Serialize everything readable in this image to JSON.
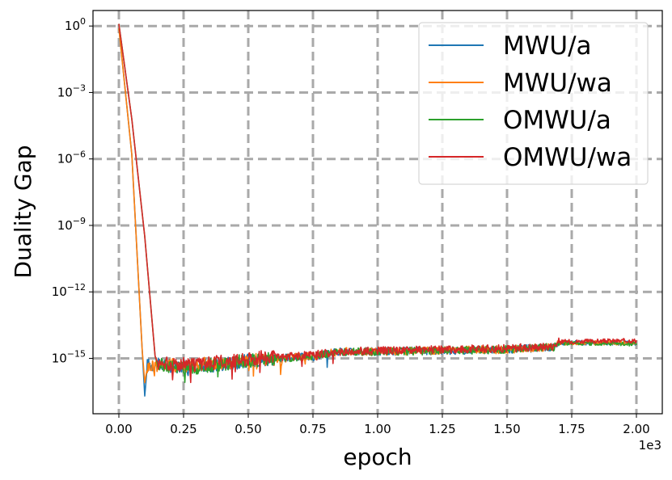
{
  "chart_data": {
    "type": "line",
    "xlabel": "epoch",
    "ylabel": "Duality Gap",
    "x_offset_text": "1e3",
    "xscale": "linear",
    "yscale": "log",
    "xlim": [
      -0.1,
      2.1
    ],
    "ylim_log10": [
      -17.5,
      0.7
    ],
    "x_ticks": [
      {
        "value": 0.0,
        "label": "0.00"
      },
      {
        "value": 0.25,
        "label": "0.25"
      },
      {
        "value": 0.5,
        "label": "0.50"
      },
      {
        "value": 0.75,
        "label": "0.75"
      },
      {
        "value": 1.0,
        "label": "1.00"
      },
      {
        "value": 1.25,
        "label": "1.25"
      },
      {
        "value": 1.5,
        "label": "1.50"
      },
      {
        "value": 1.75,
        "label": "1.75"
      },
      {
        "value": 2.0,
        "label": "2.00"
      }
    ],
    "y_ticks": [
      {
        "exp": 0,
        "base": "10",
        "sup": "0"
      },
      {
        "exp": -3,
        "base": "10",
        "sup": "−3"
      },
      {
        "exp": -6,
        "base": "10",
        "sup": "−6"
      },
      {
        "exp": -9,
        "base": "10",
        "sup": "−9"
      },
      {
        "exp": -12,
        "base": "10",
        "sup": "−12"
      },
      {
        "exp": -15,
        "base": "10",
        "sup": "−15"
      }
    ],
    "grid": true,
    "grid_style": "dashed",
    "legend_position": "top-right",
    "series": [
      {
        "name": "MWU/a",
        "color": "#1f77b4",
        "x": [
          0.0,
          0.05,
          0.09,
          0.1,
          0.11,
          0.14,
          0.3,
          0.5,
          0.75,
          0.85,
          1.0,
          1.25,
          1.5,
          1.68,
          1.7,
          2.0
        ],
        "log10y": [
          -0.1,
          -5.8,
          -14.6,
          -16.7,
          -15.3,
          -15.3,
          -15.4,
          -15.1,
          -14.9,
          -14.7,
          -14.7,
          -14.65,
          -14.6,
          -14.5,
          -14.3,
          -14.3
        ]
      },
      {
        "name": "MWU/wa",
        "color": "#ff7f0e",
        "x": [
          0.0,
          0.05,
          0.09,
          0.1,
          0.11,
          0.14,
          0.3,
          0.5,
          0.75,
          0.85,
          1.0,
          1.25,
          1.5,
          1.68,
          1.7,
          2.0
        ],
        "log10y": [
          -0.1,
          -5.8,
          -14.6,
          -16.1,
          -15.4,
          -15.3,
          -15.3,
          -15.1,
          -14.9,
          -14.7,
          -14.7,
          -14.65,
          -14.6,
          -14.5,
          -14.3,
          -14.3
        ]
      },
      {
        "name": "OMWU/a",
        "color": "#2ca02c",
        "x": [
          0.0,
          0.05,
          0.1,
          0.14,
          0.15,
          0.3,
          0.5,
          0.75,
          0.85,
          1.0,
          1.25,
          1.5,
          1.68,
          1.7,
          2.0
        ],
        "log10y": [
          0.1,
          -4.2,
          -9.5,
          -14.9,
          -15.3,
          -15.4,
          -15.1,
          -14.9,
          -14.7,
          -14.7,
          -14.65,
          -14.6,
          -14.5,
          -14.3,
          -14.35
        ]
      },
      {
        "name": "OMWU/wa",
        "color": "#d62728",
        "x": [
          0.0,
          0.05,
          0.1,
          0.14,
          0.15,
          0.3,
          0.5,
          0.75,
          0.85,
          1.0,
          1.25,
          1.5,
          1.68,
          1.7,
          2.0
        ],
        "log10y": [
          0.1,
          -4.2,
          -9.5,
          -14.9,
          -15.2,
          -15.3,
          -15.0,
          -14.85,
          -14.7,
          -14.65,
          -14.6,
          -14.55,
          -14.45,
          -14.25,
          -14.2
        ]
      }
    ]
  }
}
